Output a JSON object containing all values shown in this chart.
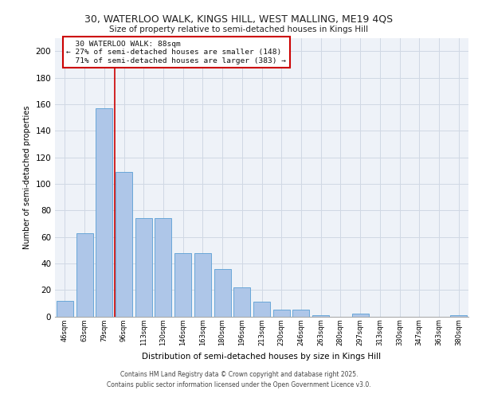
{
  "title_line1": "30, WATERLOO WALK, KINGS HILL, WEST MALLING, ME19 4QS",
  "title_line2": "Size of property relative to semi-detached houses in Kings Hill",
  "xlabel": "Distribution of semi-detached houses by size in Kings Hill",
  "ylabel": "Number of semi-detached properties",
  "categories": [
    "46sqm",
    "63sqm",
    "79sqm",
    "96sqm",
    "113sqm",
    "130sqm",
    "146sqm",
    "163sqm",
    "180sqm",
    "196sqm",
    "213sqm",
    "230sqm",
    "246sqm",
    "263sqm",
    "280sqm",
    "297sqm",
    "313sqm",
    "330sqm",
    "347sqm",
    "363sqm",
    "380sqm"
  ],
  "values": [
    12,
    63,
    157,
    109,
    74,
    74,
    48,
    48,
    36,
    22,
    11,
    5,
    5,
    1,
    0,
    2,
    0,
    0,
    0,
    0,
    1
  ],
  "bar_color": "#aec6e8",
  "bar_edge_color": "#5a9fd4",
  "grid_color": "#d0d8e4",
  "background_color": "#eef2f8",
  "annotation_box_color": "#cc0000",
  "property_line_color": "#cc0000",
  "property_label": "30 WATERLOO WALK: 88sqm",
  "smaller_pct": 27,
  "smaller_count": 148,
  "larger_pct": 71,
  "larger_count": 383,
  "ylim": [
    0,
    210
  ],
  "yticks": [
    0,
    20,
    40,
    60,
    80,
    100,
    120,
    140,
    160,
    180,
    200
  ],
  "footer_line1": "Contains HM Land Registry data © Crown copyright and database right 2025.",
  "footer_line2": "Contains public sector information licensed under the Open Government Licence v3.0."
}
